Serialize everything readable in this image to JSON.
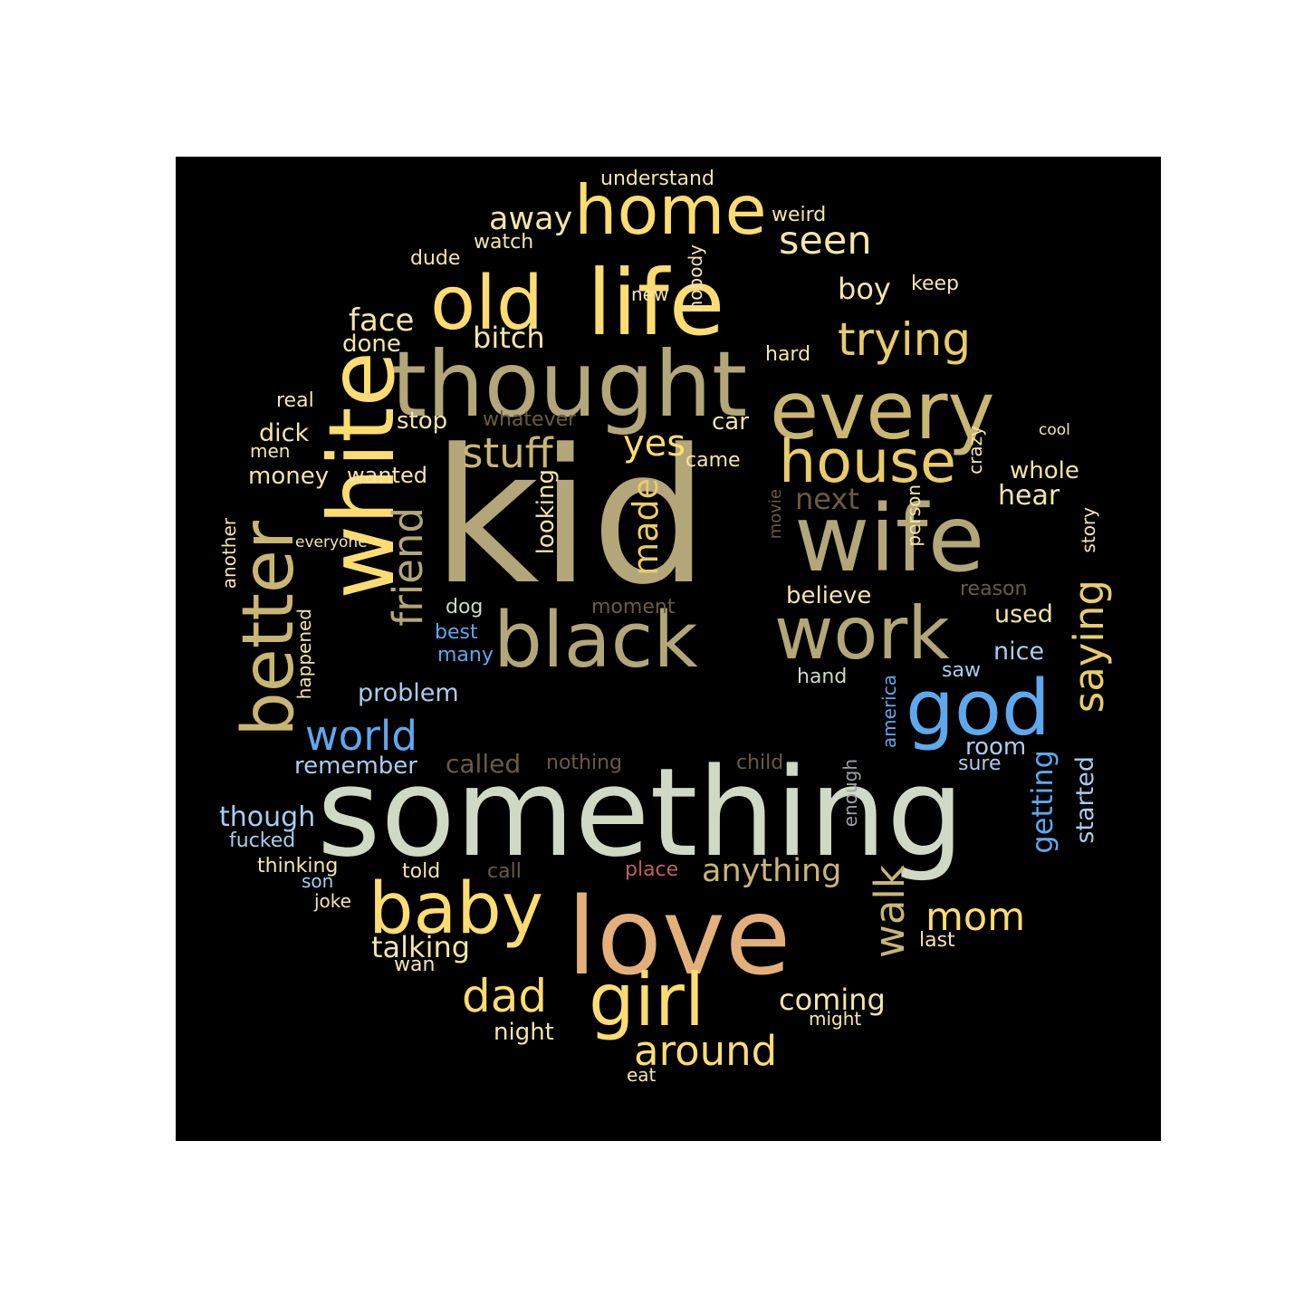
{
  "colors": {
    "background": "#ffffff",
    "panel": "#000000",
    "tan": "#b3a679",
    "khaki": "#c9b673",
    "gold": "#e8cc6a",
    "yellow": "#fddc72",
    "cream": "#f5e6a8",
    "sage": "#cfd9c3",
    "blue": "#5ea8ee",
    "lightblue": "#a9cdf0",
    "peach": "#e3b07b",
    "brown": "#8a6a3a",
    "dimbrown": "#6b5b40",
    "red": "#c06059",
    "grey": "#9aa1a8"
  },
  "words": {
    "kid": "kid",
    "something": "something",
    "love": "love",
    "thought": "thought",
    "white": "white",
    "wife": "wife",
    "life": "life",
    "old": "old",
    "every": "every",
    "home": "home",
    "black": "black",
    "work": "work",
    "baby": "baby",
    "girl": "girl",
    "god": "god",
    "better": "better",
    "house": "house",
    "trying": "trying",
    "stuff": "stuff",
    "friend": "friend",
    "world": "world",
    "saying": "saying",
    "around": "around",
    "dad": "dad",
    "walk": "walk",
    "mom": "mom",
    "seen": "seen",
    "away": "away",
    "anything": "anything",
    "yes": "yes",
    "made": "made",
    "face": "face",
    "bitch": "bitch",
    "talking": "talking",
    "coming": "coming",
    "getting": "getting",
    "next": "next",
    "boy": "boy",
    "hear": "hear",
    "whole": "whole",
    "believe": "believe",
    "problem": "problem",
    "though": "though",
    "started": "started",
    "looking": "looking",
    "used": "used",
    "room": "room",
    "nice": "nice",
    "dick": "dick",
    "money": "money",
    "stop": "stop",
    "car": "car",
    "remember": "remember",
    "called": "called",
    "night": "night",
    "done": "done",
    "wanted": "wanted",
    "understand": "understand",
    "weird": "weird",
    "watch": "watch",
    "dude": "dude",
    "keep": "keep",
    "new": "new",
    "nobody": "nobody",
    "hard": "hard",
    "real": "real",
    "whatever": "whatever",
    "cool": "cool",
    "men": "men",
    "came": "came",
    "crazy": "crazy",
    "everyone": "everyone",
    "another": "another",
    "movie": "movie",
    "person": "person",
    "story": "story",
    "reason": "reason",
    "moment": "moment",
    "dog": "dog",
    "best": "best",
    "many": "many",
    "happened": "happened",
    "saw": "saw",
    "hand": "hand",
    "america": "america",
    "nothing": "nothing",
    "child": "child",
    "sure": "sure",
    "enough": "enough",
    "fucked": "fucked",
    "thinking": "thinking",
    "son": "son",
    "told": "told",
    "call": "call",
    "place": "place",
    "joke": "joke",
    "last": "last",
    "wan": "wan",
    "might": "might",
    "eat": "eat"
  }
}
